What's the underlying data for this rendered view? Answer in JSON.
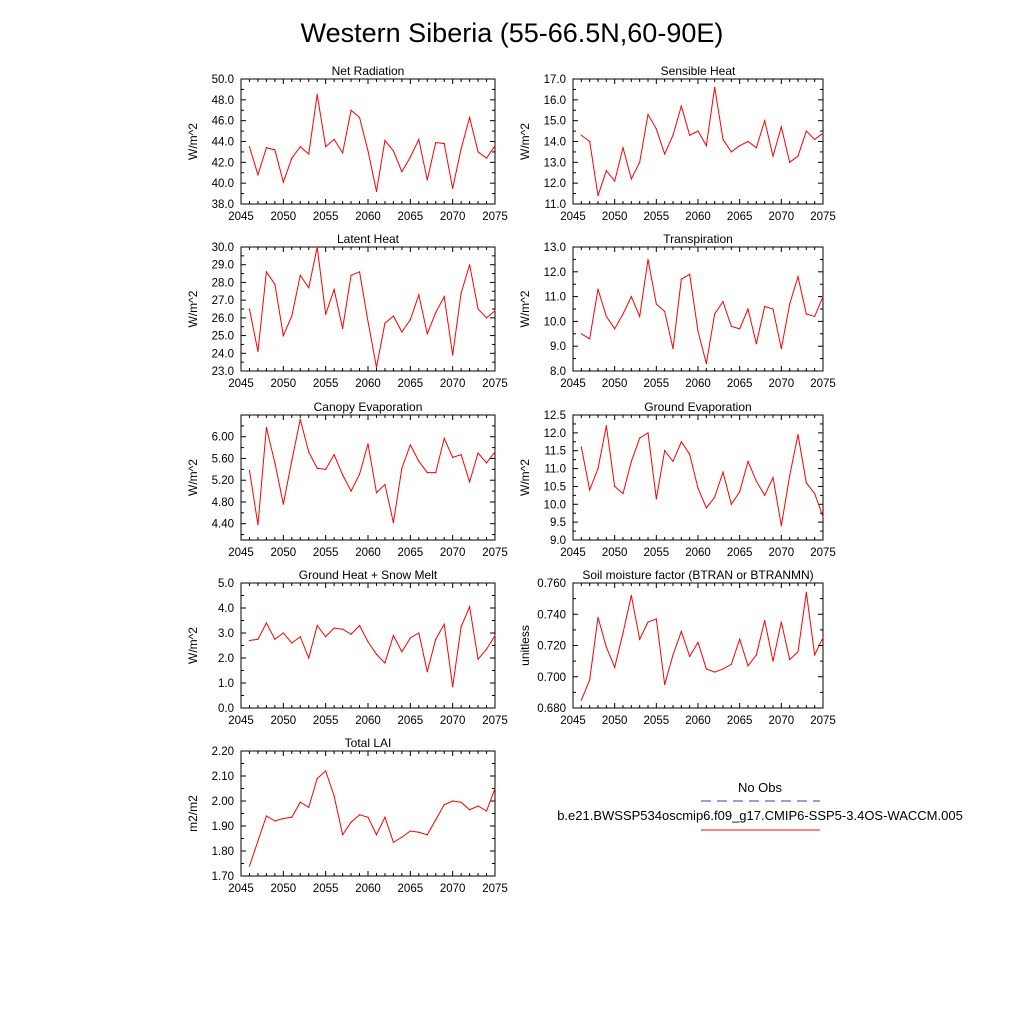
{
  "figure": {
    "title": "Western Siberia (55-66.5N,60-90E)"
  },
  "legend": {
    "entries": [
      {
        "name": "No Obs",
        "color": "#3d3dbf",
        "style": "dashed"
      },
      {
        "name": "b.e21.BWSSP534oscmip6.f09_g17.CMIP6-SSP5-3.4OS-WACCM.005",
        "color": "#ff0000",
        "style": "solid"
      }
    ]
  },
  "chart_data": [
    {
      "type": "line",
      "title": "Net Radiation",
      "ylabel": "W/m^2",
      "xlim": [
        2045,
        2075
      ],
      "ylim": [
        38.0,
        50.0
      ],
      "xticks": [
        2045,
        2050,
        2055,
        2060,
        2065,
        2070,
        2075
      ],
      "yticks": [
        "38.0",
        "40.0",
        "42.0",
        "44.0",
        "46.0",
        "48.0",
        "50.0"
      ],
      "x": [
        2046,
        2047,
        2048,
        2049,
        2050,
        2051,
        2052,
        2053,
        2054,
        2055,
        2056,
        2057,
        2058,
        2059,
        2060,
        2061,
        2062,
        2063,
        2064,
        2065,
        2066,
        2067,
        2068,
        2069,
        2070,
        2071,
        2072,
        2073,
        2074,
        2075
      ],
      "series": [
        {
          "values": [
            43.5,
            40.8,
            43.4,
            43.2,
            40.1,
            42.4,
            43.5,
            42.8,
            48.5,
            43.5,
            44.2,
            42.9,
            47.0,
            46.3,
            43.1,
            39.2,
            44.1,
            43.1,
            41.1,
            42.5,
            44.2,
            40.3,
            43.9,
            43.8,
            39.5,
            43.3,
            46.3,
            43.0,
            42.4,
            43.6
          ],
          "color": "#ff0000"
        }
      ]
    },
    {
      "type": "line",
      "title": "Sensible Heat",
      "ylabel": "W/m^2",
      "xlim": [
        2045,
        2075
      ],
      "ylim": [
        11.0,
        17.0
      ],
      "xticks": [
        2045,
        2050,
        2055,
        2060,
        2065,
        2070,
        2075
      ],
      "yticks": [
        "11.0",
        "12.0",
        "13.0",
        "14.0",
        "15.0",
        "16.0",
        "17.0"
      ],
      "x": [
        2046,
        2047,
        2048,
        2049,
        2050,
        2051,
        2052,
        2053,
        2054,
        2055,
        2056,
        2057,
        2058,
        2059,
        2060,
        2061,
        2062,
        2063,
        2064,
        2065,
        2066,
        2067,
        2068,
        2069,
        2070,
        2071,
        2072,
        2073,
        2074,
        2075
      ],
      "series": [
        {
          "values": [
            14.3,
            14.0,
            11.4,
            12.6,
            12.1,
            13.7,
            12.2,
            13.0,
            15.3,
            14.6,
            13.4,
            14.3,
            15.7,
            14.3,
            14.5,
            13.8,
            16.6,
            14.1,
            13.5,
            13.8,
            14.0,
            13.7,
            15.0,
            13.3,
            14.7,
            13.0,
            13.3,
            14.5,
            14.1,
            14.4
          ],
          "color": "#ff0000"
        }
      ]
    },
    {
      "type": "line",
      "title": "Latent Heat",
      "ylabel": "W/m^2",
      "xlim": [
        2045,
        2075
      ],
      "ylim": [
        23.0,
        30.0
      ],
      "xticks": [
        2045,
        2050,
        2055,
        2060,
        2065,
        2070,
        2075
      ],
      "yticks": [
        "23.0",
        "24.0",
        "25.0",
        "26.0",
        "27.0",
        "28.0",
        "29.0",
        "30.0"
      ],
      "x": [
        2046,
        2047,
        2048,
        2049,
        2050,
        2051,
        2052,
        2053,
        2054,
        2055,
        2056,
        2057,
        2058,
        2059,
        2060,
        2061,
        2062,
        2063,
        2064,
        2065,
        2066,
        2067,
        2068,
        2069,
        2070,
        2071,
        2072,
        2073,
        2074,
        2075
      ],
      "series": [
        {
          "values": [
            26.5,
            24.1,
            28.6,
            27.9,
            25.0,
            26.1,
            28.4,
            27.7,
            30.0,
            26.2,
            27.6,
            25.4,
            28.4,
            28.6,
            25.8,
            23.2,
            25.7,
            26.1,
            25.2,
            25.9,
            27.3,
            25.1,
            26.3,
            27.2,
            23.9,
            27.4,
            29.0,
            26.5,
            26.0,
            26.4
          ],
          "color": "#ff0000"
        }
      ]
    },
    {
      "type": "line",
      "title": "Transpiration",
      "ylabel": "W/m^2",
      "xlim": [
        2045,
        2075
      ],
      "ylim": [
        8.0,
        13.0
      ],
      "xticks": [
        2045,
        2050,
        2055,
        2060,
        2065,
        2070,
        2075
      ],
      "yticks": [
        "8.0",
        "9.0",
        "10.0",
        "11.0",
        "12.0",
        "13.0"
      ],
      "x": [
        2046,
        2047,
        2048,
        2049,
        2050,
        2051,
        2052,
        2053,
        2054,
        2055,
        2056,
        2057,
        2058,
        2059,
        2060,
        2061,
        2062,
        2063,
        2064,
        2065,
        2066,
        2067,
        2068,
        2069,
        2070,
        2071,
        2072,
        2073,
        2074,
        2075
      ],
      "series": [
        {
          "values": [
            9.5,
            9.3,
            11.3,
            10.2,
            9.7,
            10.3,
            11.0,
            10.2,
            12.5,
            10.7,
            10.4,
            8.9,
            11.7,
            11.9,
            9.6,
            8.3,
            10.3,
            10.8,
            9.8,
            9.7,
            10.5,
            9.1,
            10.6,
            10.5,
            8.9,
            10.7,
            11.8,
            10.3,
            10.2,
            11.0
          ],
          "color": "#ff0000"
        }
      ]
    },
    {
      "type": "line",
      "title": "Canopy Evaporation",
      "ylabel": "W/m^2",
      "xlim": [
        2045,
        2075
      ],
      "ylim": [
        4.1,
        6.4
      ],
      "xticks": [
        2045,
        2050,
        2055,
        2060,
        2065,
        2070,
        2075
      ],
      "yticks": [
        "4.40",
        "4.80",
        "5.20",
        "5.60",
        "6.00"
      ],
      "x": [
        2046,
        2047,
        2048,
        2049,
        2050,
        2051,
        2052,
        2053,
        2054,
        2055,
        2056,
        2057,
        2058,
        2059,
        2060,
        2061,
        2062,
        2063,
        2064,
        2065,
        2066,
        2067,
        2068,
        2069,
        2070,
        2071,
        2072,
        2073,
        2074,
        2075
      ],
      "series": [
        {
          "values": [
            5.38,
            4.38,
            6.17,
            5.52,
            4.76,
            5.56,
            6.32,
            5.72,
            5.42,
            5.4,
            5.67,
            5.3,
            5.0,
            5.31,
            5.87,
            4.97,
            5.12,
            4.42,
            5.42,
            5.85,
            5.55,
            5.34,
            5.34,
            5.97,
            5.62,
            5.67,
            5.17,
            5.7,
            5.52,
            5.72
          ],
          "color": "#ff0000"
        }
      ]
    },
    {
      "type": "line",
      "title": "Ground Evaporation",
      "ylabel": "W/m^2",
      "xlim": [
        2045,
        2075
      ],
      "ylim": [
        9.0,
        12.5
      ],
      "xticks": [
        2045,
        2050,
        2055,
        2060,
        2065,
        2070,
        2075
      ],
      "yticks": [
        "9.0",
        "9.5",
        "10.0",
        "10.5",
        "11.0",
        "11.5",
        "12.0",
        "12.5"
      ],
      "x": [
        2046,
        2047,
        2048,
        2049,
        2050,
        2051,
        2052,
        2053,
        2054,
        2055,
        2056,
        2057,
        2058,
        2059,
        2060,
        2061,
        2062,
        2063,
        2064,
        2065,
        2066,
        2067,
        2068,
        2069,
        2070,
        2071,
        2072,
        2073,
        2074,
        2075
      ],
      "series": [
        {
          "values": [
            11.6,
            10.4,
            11.0,
            12.2,
            10.5,
            10.3,
            11.2,
            11.85,
            12.0,
            10.15,
            11.5,
            11.2,
            11.75,
            11.4,
            10.45,
            9.9,
            10.2,
            10.9,
            10.0,
            10.35,
            11.2,
            10.65,
            10.25,
            10.75,
            9.4,
            10.8,
            11.95,
            10.6,
            10.3,
            9.65
          ],
          "color": "#ff0000"
        }
      ]
    },
    {
      "type": "line",
      "title": "Ground Heat + Snow Melt",
      "ylabel": "W/m^2",
      "xlim": [
        2045,
        2075
      ],
      "ylim": [
        0.0,
        5.0
      ],
      "xticks": [
        2045,
        2050,
        2055,
        2060,
        2065,
        2070,
        2075
      ],
      "yticks": [
        "0.0",
        "1.0",
        "2.0",
        "3.0",
        "4.0",
        "5.0"
      ],
      "x": [
        2046,
        2047,
        2048,
        2049,
        2050,
        2051,
        2052,
        2053,
        2054,
        2055,
        2056,
        2057,
        2058,
        2059,
        2060,
        2061,
        2062,
        2063,
        2064,
        2065,
        2066,
        2067,
        2068,
        2069,
        2070,
        2071,
        2072,
        2073,
        2074,
        2075
      ],
      "series": [
        {
          "values": [
            2.7,
            2.75,
            3.4,
            2.75,
            3.0,
            2.6,
            2.85,
            2.0,
            3.3,
            2.85,
            3.2,
            3.15,
            2.95,
            3.3,
            2.65,
            2.15,
            1.8,
            2.9,
            2.25,
            2.8,
            3.0,
            1.45,
            2.75,
            3.35,
            0.85,
            3.25,
            4.05,
            1.95,
            2.35,
            2.9
          ],
          "color": "#ff0000"
        }
      ]
    },
    {
      "type": "line",
      "title": "Soil moisture factor (BTRAN or BTRANMN)",
      "ylabel": "unitless",
      "xlim": [
        2045,
        2075
      ],
      "ylim": [
        0.68,
        0.76
      ],
      "xticks": [
        2045,
        2050,
        2055,
        2060,
        2065,
        2070,
        2075
      ],
      "yticks": [
        "0.680",
        "0.700",
        "0.720",
        "0.740",
        "0.760"
      ],
      "x": [
        2046,
        2047,
        2048,
        2049,
        2050,
        2051,
        2052,
        2053,
        2054,
        2055,
        2056,
        2057,
        2058,
        2059,
        2060,
        2061,
        2062,
        2063,
        2064,
        2065,
        2066,
        2067,
        2068,
        2069,
        2070,
        2071,
        2072,
        2073,
        2074,
        2075
      ],
      "series": [
        {
          "values": [
            0.685,
            0.698,
            0.738,
            0.719,
            0.706,
            0.728,
            0.752,
            0.724,
            0.735,
            0.737,
            0.695,
            0.714,
            0.729,
            0.713,
            0.722,
            0.705,
            0.703,
            0.705,
            0.708,
            0.724,
            0.707,
            0.714,
            0.736,
            0.71,
            0.735,
            0.711,
            0.716,
            0.754,
            0.714,
            0.725
          ],
          "color": "#ff0000"
        }
      ]
    },
    {
      "type": "line",
      "title": "Total LAI",
      "ylabel": "m2/m2",
      "xlim": [
        2045,
        2075
      ],
      "ylim": [
        1.7,
        2.2
      ],
      "xticks": [
        2045,
        2050,
        2055,
        2060,
        2065,
        2070,
        2075
      ],
      "yticks": [
        "1.70",
        "1.80",
        "1.90",
        "2.00",
        "2.10",
        "2.20"
      ],
      "x": [
        2046,
        2047,
        2048,
        2049,
        2050,
        2051,
        2052,
        2053,
        2054,
        2055,
        2056,
        2057,
        2058,
        2059,
        2060,
        2061,
        2062,
        2063,
        2064,
        2065,
        2066,
        2067,
        2068,
        2069,
        2070,
        2071,
        2072,
        2073,
        2074,
        2075
      ],
      "series": [
        {
          "values": [
            1.74,
            1.84,
            1.94,
            1.92,
            1.93,
            1.935,
            1.995,
            1.975,
            2.09,
            2.12,
            2.02,
            1.865,
            1.915,
            1.945,
            1.935,
            1.865,
            1.935,
            1.835,
            1.855,
            1.88,
            1.875,
            1.865,
            1.925,
            1.985,
            2.0,
            1.995,
            1.965,
            1.98,
            1.96,
            2.05
          ],
          "color": "#ff0000"
        }
      ]
    }
  ]
}
